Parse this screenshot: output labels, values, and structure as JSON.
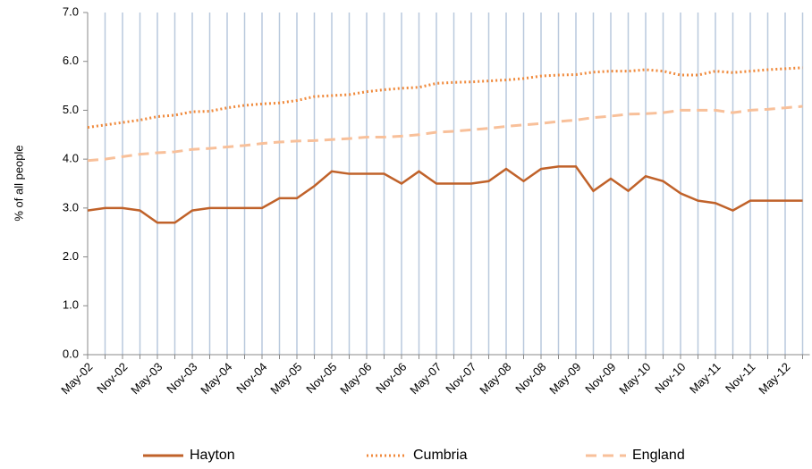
{
  "chart_data": {
    "type": "line",
    "y_label": "% of all people",
    "categories": [
      "May-02",
      null,
      "Nov-02",
      null,
      "May-03",
      null,
      "Nov-03",
      null,
      "May-04",
      null,
      "Nov-04",
      null,
      "May-05",
      null,
      "Nov-05",
      null,
      "May-06",
      null,
      "Nov-06",
      null,
      "May-07",
      null,
      "Nov-07",
      null,
      "May-08",
      null,
      "Nov-08",
      null,
      "May-09",
      null,
      "Nov-09",
      null,
      "May-10",
      null,
      "Nov-10",
      null,
      "May-11",
      null,
      "Nov-11",
      null,
      "May-12",
      null
    ],
    "series": [
      {
        "name": "Hayton",
        "color": "#c0622a",
        "style": "solid",
        "values": [
          2.95,
          3.0,
          3.0,
          2.95,
          2.7,
          2.7,
          2.95,
          3.0,
          3.0,
          3.0,
          3.0,
          3.2,
          3.2,
          3.45,
          3.75,
          3.7,
          3.7,
          3.7,
          3.5,
          3.75,
          3.5,
          3.5,
          3.5,
          3.55,
          3.8,
          3.55,
          3.8,
          3.85,
          3.85,
          3.35,
          3.6,
          3.35,
          3.65,
          3.55,
          3.3,
          3.15,
          3.1,
          2.95,
          3.15,
          3.15,
          3.15,
          3.15
        ]
      },
      {
        "name": "Cumbria",
        "color": "#f08a3c",
        "style": "dotted",
        "values": [
          4.65,
          4.7,
          4.75,
          4.8,
          4.87,
          4.9,
          4.97,
          4.98,
          5.05,
          5.1,
          5.13,
          5.15,
          5.2,
          5.28,
          5.3,
          5.32,
          5.38,
          5.42,
          5.45,
          5.47,
          5.55,
          5.57,
          5.58,
          5.6,
          5.62,
          5.65,
          5.7,
          5.72,
          5.73,
          5.78,
          5.8,
          5.8,
          5.83,
          5.8,
          5.72,
          5.72,
          5.8,
          5.77,
          5.8,
          5.83,
          5.85,
          5.87
        ]
      },
      {
        "name": "England",
        "color": "#f8c09a",
        "style": "dashed",
        "values": [
          3.97,
          4.0,
          4.05,
          4.1,
          4.13,
          4.15,
          4.2,
          4.22,
          4.25,
          4.28,
          4.32,
          4.35,
          4.37,
          4.38,
          4.4,
          4.42,
          4.45,
          4.45,
          4.47,
          4.5,
          4.55,
          4.57,
          4.6,
          4.63,
          4.67,
          4.7,
          4.73,
          4.77,
          4.8,
          4.85,
          4.88,
          4.92,
          4.93,
          4.95,
          5.0,
          5.0,
          5.0,
          4.95,
          5.0,
          5.02,
          5.05,
          5.08
        ]
      }
    ],
    "ylim": [
      0,
      7
    ],
    "yticks": [
      {
        "value": 0,
        "label": "0.0"
      },
      {
        "value": 1,
        "label": "1.0"
      },
      {
        "value": 2,
        "label": "2.0"
      },
      {
        "value": 3,
        "label": "3.0"
      },
      {
        "value": 4,
        "label": "4.0"
      },
      {
        "value": 5,
        "label": "5.0"
      },
      {
        "value": 6,
        "label": "6.0"
      },
      {
        "value": 7,
        "label": "7.0"
      }
    ],
    "grid": true,
    "legend": "bottom"
  }
}
